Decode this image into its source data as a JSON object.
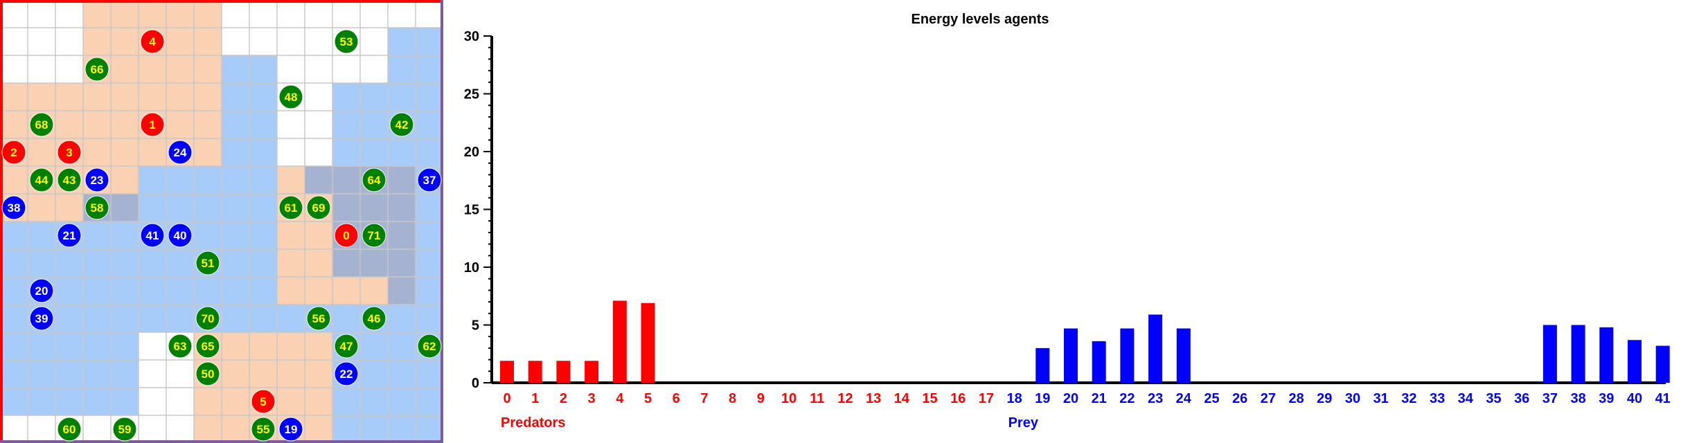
{
  "colors": {
    "predator": "#ff0000",
    "prey": "#0000ff",
    "plant": "#008000",
    "plant_text": "#ffff00",
    "agent_text": "#ffffff",
    "predator_region": "#f5a366",
    "prey_region": "#3d8df5",
    "grid_line": "#c8c8c8",
    "grid_border_top_left": "#ff0000",
    "grid_border_right_bottom": "#7f5aa0"
  },
  "grid": {
    "cols": 16,
    "rows": 16,
    "predator_cells": [
      [
        3,
        0
      ],
      [
        4,
        0
      ],
      [
        5,
        0
      ],
      [
        6,
        0
      ],
      [
        7,
        0
      ],
      [
        3,
        1
      ],
      [
        4,
        1
      ],
      [
        5,
        1
      ],
      [
        6,
        1
      ],
      [
        7,
        1
      ],
      [
        3,
        2
      ],
      [
        4,
        2
      ],
      [
        5,
        2
      ],
      [
        6,
        2
      ],
      [
        7,
        2
      ],
      [
        0,
        3
      ],
      [
        1,
        3
      ],
      [
        2,
        3
      ],
      [
        3,
        3
      ],
      [
        4,
        3
      ],
      [
        5,
        3
      ],
      [
        6,
        3
      ],
      [
        7,
        3
      ],
      [
        0,
        4
      ],
      [
        1,
        4
      ],
      [
        2,
        4
      ],
      [
        3,
        4
      ],
      [
        4,
        4
      ],
      [
        5,
        4
      ],
      [
        6,
        4
      ],
      [
        7,
        4
      ],
      [
        0,
        5
      ],
      [
        1,
        5
      ],
      [
        2,
        5
      ],
      [
        3,
        5
      ],
      [
        4,
        5
      ],
      [
        5,
        5
      ],
      [
        6,
        5
      ],
      [
        7,
        5
      ],
      [
        0,
        6
      ],
      [
        1,
        6
      ],
      [
        2,
        6
      ],
      [
        3,
        6
      ],
      [
        4,
        6
      ],
      [
        0,
        7
      ],
      [
        1,
        7
      ],
      [
        2,
        7
      ],
      [
        3,
        7
      ],
      [
        4,
        7
      ],
      [
        10,
        6
      ],
      [
        11,
        6
      ],
      [
        12,
        6
      ],
      [
        13,
        6
      ],
      [
        14,
        6
      ],
      [
        10,
        7
      ],
      [
        11,
        7
      ],
      [
        12,
        7
      ],
      [
        13,
        7
      ],
      [
        14,
        7
      ],
      [
        10,
        8
      ],
      [
        11,
        8
      ],
      [
        12,
        8
      ],
      [
        13,
        8
      ],
      [
        14,
        8
      ],
      [
        10,
        9
      ],
      [
        11,
        9
      ],
      [
        12,
        9
      ],
      [
        13,
        9
      ],
      [
        14,
        9
      ],
      [
        10,
        10
      ],
      [
        11,
        10
      ],
      [
        12,
        10
      ],
      [
        13,
        10
      ],
      [
        14,
        10
      ],
      [
        7,
        12
      ],
      [
        8,
        12
      ],
      [
        9,
        12
      ],
      [
        10,
        12
      ],
      [
        11,
        12
      ],
      [
        7,
        13
      ],
      [
        8,
        13
      ],
      [
        9,
        13
      ],
      [
        10,
        13
      ],
      [
        11,
        13
      ],
      [
        7,
        14
      ],
      [
        8,
        14
      ],
      [
        9,
        14
      ],
      [
        10,
        14
      ],
      [
        11,
        14
      ],
      [
        7,
        15
      ],
      [
        8,
        15
      ],
      [
        9,
        15
      ],
      [
        10,
        15
      ],
      [
        11,
        15
      ]
    ],
    "prey_cells": [
      [
        8,
        2
      ],
      [
        9,
        2
      ],
      [
        8,
        3
      ],
      [
        9,
        3
      ],
      [
        8,
        4
      ],
      [
        9,
        4
      ],
      [
        8,
        5
      ],
      [
        9,
        5
      ],
      [
        8,
        6
      ],
      [
        9,
        6
      ],
      [
        8,
        7
      ],
      [
        9,
        7
      ],
      [
        8,
        8
      ],
      [
        9,
        8
      ],
      [
        8,
        9
      ],
      [
        9,
        9
      ],
      [
        8,
        10
      ],
      [
        9,
        10
      ],
      [
        8,
        11
      ],
      [
        9,
        11
      ],
      [
        12,
        3
      ],
      [
        13,
        3
      ],
      [
        14,
        3
      ],
      [
        15,
        3
      ],
      [
        12,
        4
      ],
      [
        13,
        4
      ],
      [
        14,
        4
      ],
      [
        15,
        4
      ],
      [
        12,
        5
      ],
      [
        13,
        5
      ],
      [
        14,
        5
      ],
      [
        15,
        5
      ],
      [
        11,
        6
      ],
      [
        12,
        6
      ],
      [
        13,
        6
      ],
      [
        14,
        6
      ],
      [
        15,
        6
      ],
      [
        12,
        7
      ],
      [
        13,
        7
      ],
      [
        14,
        7
      ],
      [
        15,
        7
      ],
      [
        12,
        8
      ],
      [
        13,
        8
      ],
      [
        14,
        8
      ],
      [
        15,
        8
      ],
      [
        12,
        9
      ],
      [
        13,
        9
      ],
      [
        14,
        9
      ],
      [
        15,
        9
      ],
      [
        14,
        10
      ],
      [
        15,
        10
      ],
      [
        0,
        8
      ],
      [
        1,
        8
      ],
      [
        2,
        8
      ],
      [
        3,
        8
      ],
      [
        4,
        8
      ],
      [
        5,
        8
      ],
      [
        6,
        8
      ],
      [
        7,
        8
      ],
      [
        0,
        9
      ],
      [
        1,
        9
      ],
      [
        2,
        9
      ],
      [
        3,
        9
      ],
      [
        4,
        9
      ],
      [
        5,
        9
      ],
      [
        6,
        9
      ],
      [
        7,
        9
      ],
      [
        0,
        10
      ],
      [
        1,
        10
      ],
      [
        2,
        10
      ],
      [
        3,
        10
      ],
      [
        4,
        10
      ],
      [
        5,
        10
      ],
      [
        6,
        10
      ],
      [
        7,
        10
      ],
      [
        0,
        11
      ],
      [
        1,
        11
      ],
      [
        2,
        11
      ],
      [
        3,
        11
      ],
      [
        4,
        11
      ],
      [
        5,
        11
      ],
      [
        6,
        11
      ],
      [
        7,
        11
      ],
      [
        0,
        12
      ],
      [
        1,
        12
      ],
      [
        2,
        12
      ],
      [
        3,
        12
      ],
      [
        4,
        12
      ],
      [
        0,
        13
      ],
      [
        1,
        13
      ],
      [
        2,
        13
      ],
      [
        3,
        13
      ],
      [
        4,
        13
      ],
      [
        0,
        14
      ],
      [
        1,
        14
      ],
      [
        2,
        14
      ],
      [
        3,
        14
      ],
      [
        4,
        14
      ],
      [
        5,
        6
      ],
      [
        6,
        6
      ],
      [
        7,
        6
      ],
      [
        5,
        7
      ],
      [
        6,
        7
      ],
      [
        7,
        7
      ],
      [
        3,
        7
      ],
      [
        4,
        7
      ],
      [
        10,
        11
      ],
      [
        11,
        11
      ],
      [
        12,
        11
      ],
      [
        13,
        11
      ],
      [
        14,
        11
      ],
      [
        15,
        11
      ],
      [
        12,
        12
      ],
      [
        13,
        12
      ],
      [
        14,
        12
      ],
      [
        15,
        12
      ],
      [
        12,
        13
      ],
      [
        13,
        13
      ],
      [
        14,
        13
      ],
      [
        15,
        13
      ],
      [
        12,
        14
      ],
      [
        13,
        14
      ],
      [
        14,
        14
      ],
      [
        15,
        14
      ],
      [
        12,
        15
      ],
      [
        13,
        15
      ],
      [
        14,
        15
      ],
      [
        15,
        15
      ],
      [
        14,
        1
      ],
      [
        15,
        1
      ],
      [
        14,
        2
      ],
      [
        15,
        2
      ]
    ],
    "agents": [
      {
        "label": "4",
        "kind": "predator",
        "col": 5,
        "row": 1
      },
      {
        "label": "53",
        "kind": "plant",
        "col": 12,
        "row": 1
      },
      {
        "label": "66",
        "kind": "plant",
        "col": 3,
        "row": 2
      },
      {
        "label": "48",
        "kind": "plant",
        "col": 10,
        "row": 3
      },
      {
        "label": "68",
        "kind": "plant",
        "col": 1,
        "row": 4
      },
      {
        "label": "1",
        "kind": "predator",
        "col": 5,
        "row": 4
      },
      {
        "label": "42",
        "kind": "plant",
        "col": 14,
        "row": 4
      },
      {
        "label": "2",
        "kind": "predator",
        "col": 0,
        "row": 5
      },
      {
        "label": "3",
        "kind": "predator",
        "col": 2,
        "row": 5
      },
      {
        "label": "24",
        "kind": "prey",
        "col": 6,
        "row": 5
      },
      {
        "label": "44",
        "kind": "plant",
        "col": 1,
        "row": 6
      },
      {
        "label": "43",
        "kind": "plant",
        "col": 2,
        "row": 6
      },
      {
        "label": "23",
        "kind": "prey",
        "col": 3,
        "row": 6
      },
      {
        "label": "64",
        "kind": "plant",
        "col": 13,
        "row": 6
      },
      {
        "label": "37",
        "kind": "prey",
        "col": 15,
        "row": 6
      },
      {
        "label": "38",
        "kind": "prey",
        "col": 0,
        "row": 7
      },
      {
        "label": "58",
        "kind": "plant",
        "col": 3,
        "row": 7
      },
      {
        "label": "61",
        "kind": "plant",
        "col": 10,
        "row": 7
      },
      {
        "label": "69",
        "kind": "plant",
        "col": 11,
        "row": 7
      },
      {
        "label": "21",
        "kind": "prey",
        "col": 2,
        "row": 8
      },
      {
        "label": "41",
        "kind": "prey",
        "col": 5,
        "row": 8
      },
      {
        "label": "40",
        "kind": "prey",
        "col": 6,
        "row": 8
      },
      {
        "label": "0",
        "kind": "predator",
        "col": 12,
        "row": 8
      },
      {
        "label": "71",
        "kind": "plant",
        "col": 13,
        "row": 8
      },
      {
        "label": "51",
        "kind": "plant",
        "col": 7,
        "row": 9
      },
      {
        "label": "20",
        "kind": "prey",
        "col": 1,
        "row": 10
      },
      {
        "label": "39",
        "kind": "prey",
        "col": 1,
        "row": 11
      },
      {
        "label": "70",
        "kind": "plant",
        "col": 7,
        "row": 11
      },
      {
        "label": "56",
        "kind": "plant",
        "col": 11,
        "row": 11
      },
      {
        "label": "46",
        "kind": "plant",
        "col": 13,
        "row": 11
      },
      {
        "label": "63",
        "kind": "plant",
        "col": 6,
        "row": 12
      },
      {
        "label": "65",
        "kind": "plant",
        "col": 7,
        "row": 12
      },
      {
        "label": "47",
        "kind": "plant",
        "col": 12,
        "row": 12
      },
      {
        "label": "62",
        "kind": "plant",
        "col": 15,
        "row": 12
      },
      {
        "label": "50",
        "kind": "plant",
        "col": 7,
        "row": 13
      },
      {
        "label": "22",
        "kind": "prey",
        "col": 12,
        "row": 13
      },
      {
        "label": "5",
        "kind": "predator",
        "col": 9,
        "row": 14
      },
      {
        "label": "60",
        "kind": "plant",
        "col": 2,
        "row": 15
      },
      {
        "label": "59",
        "kind": "plant",
        "col": 4,
        "row": 15
      },
      {
        "label": "55",
        "kind": "plant",
        "col": 9,
        "row": 15
      },
      {
        "label": "19",
        "kind": "prey",
        "col": 10,
        "row": 15
      }
    ]
  },
  "chart_data": {
    "type": "bar",
    "title": "Energy levels agents",
    "xlabel": "",
    "ylabel": "",
    "ylim": [
      0,
      30
    ],
    "y_ticks": [
      "0",
      "5",
      "10",
      "15",
      "20",
      "25",
      "30"
    ],
    "grid": false,
    "categories": [
      "0",
      "1",
      "2",
      "3",
      "4",
      "5",
      "6",
      "7",
      "8",
      "9",
      "10",
      "11",
      "12",
      "13",
      "14",
      "15",
      "16",
      "17",
      "18",
      "19",
      "20",
      "21",
      "22",
      "23",
      "24",
      "25",
      "26",
      "27",
      "28",
      "29",
      "30",
      "31",
      "32",
      "33",
      "34",
      "35",
      "36",
      "37",
      "38",
      "39",
      "40",
      "41"
    ],
    "category_groups": [
      {
        "name": "Predators",
        "from": 0,
        "to": 17
      },
      {
        "name": "Prey",
        "from": 18,
        "to": 41
      }
    ],
    "values": [
      1.9,
      1.9,
      1.9,
      1.9,
      7.1,
      6.9,
      0,
      0,
      0,
      0,
      0,
      0,
      0,
      0,
      0,
      0,
      0,
      0,
      0,
      3.0,
      4.7,
      3.6,
      4.7,
      5.9,
      4.7,
      0,
      0,
      0,
      0,
      0,
      0,
      0,
      0,
      0,
      0,
      0,
      0,
      5.0,
      5.0,
      4.8,
      3.7,
      3.2
    ],
    "series_colors": {
      "Predators": "#ff0000",
      "Prey": "#0000ff"
    }
  }
}
